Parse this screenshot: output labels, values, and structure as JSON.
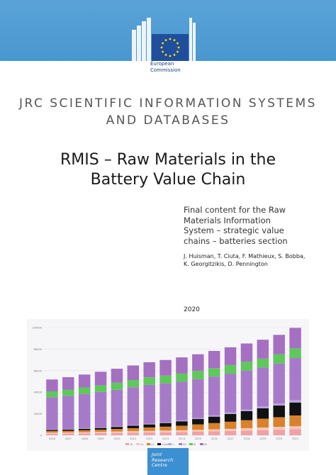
{
  "header": {
    "brand_lines": [
      "European",
      "Commission"
    ],
    "band_color": "#4a97cf",
    "flag_color": "#1f4f9c",
    "star_color": "#ffdd00"
  },
  "series_title_lines": [
    "JRC SCIENTIFIC INFORMATION SYSTEMS",
    "AND DATABASES"
  ],
  "title_lines": [
    "RMIS – Raw Materials in the",
    "Battery Value Chain"
  ],
  "subtitle_lines": [
    "Final content for the Raw",
    "Materials Information",
    "System – strategic value",
    "chains – batteries section"
  ],
  "authors_lines": [
    "J. Huisman, T. Ciuta, F. Mathieux, S. Bobba,",
    "K. Georgitzikis, D. Pennington"
  ],
  "year": "2020",
  "footer": {
    "jrc_lines": [
      "Joint",
      "Research",
      "Centre"
    ]
  },
  "chart_data": {
    "type": "bar",
    "stacked": true,
    "categories": [
      "2006",
      "2007",
      "2008",
      "2009",
      "2010",
      "2011",
      "2012",
      "2013",
      "2014",
      "2015",
      "2016",
      "2017",
      "2018",
      "2019",
      "2020",
      "2021"
    ],
    "ylim": [
      0,
      100000
    ],
    "y_ticks": [
      "0",
      "20000",
      "40000",
      "60000",
      "80000",
      "100000"
    ],
    "grid": true,
    "legend": "bottom",
    "series": [
      {
        "name": "Cd",
        "color": "#f0a0a8",
        "values": [
          1500,
          1600,
          1800,
          2000,
          2200,
          2400,
          2600,
          2800,
          3000,
          3300,
          3600,
          4000,
          4400,
          4800,
          5200,
          5600
        ]
      },
      {
        "name": "Co",
        "color": "#f6c8b8",
        "values": [
          1000,
          1000,
          1100,
          1200,
          1300,
          1400,
          1500,
          1600,
          1700,
          1800,
          1900,
          2000,
          2200,
          2400,
          2600,
          2800
        ]
      },
      {
        "name": "Cu",
        "color": "#d9822b",
        "values": [
          1500,
          1600,
          1800,
          2000,
          2400,
          2800,
          3200,
          3600,
          4200,
          5000,
          5800,
          6600,
          7400,
          8200,
          9000,
          10000
        ]
      },
      {
        "name": "Graphite",
        "color": "#111111",
        "values": [
          1000,
          1100,
          1300,
          1600,
          1900,
          2300,
          2800,
          3400,
          4100,
          5000,
          6000,
          7200,
          8400,
          9600,
          10800,
          12000
        ]
      },
      {
        "name": "Li",
        "color": "#b9a3e0",
        "values": [
          300,
          350,
          400,
          450,
          500,
          600,
          700,
          800,
          900,
          1000,
          1200,
          1400,
          1600,
          1800,
          2000,
          2300
        ]
      },
      {
        "name": "Mn",
        "color": "#a77ac9",
        "values": [
          30000,
          31000,
          32000,
          33000,
          34000,
          35000,
          36000,
          36000,
          36000,
          36000,
          36000,
          36000,
          36000,
          36000,
          37000,
          39000
        ]
      },
      {
        "name": "Ni",
        "color": "#5ec85a",
        "values": [
          5500,
          5800,
          6000,
          6200,
          6500,
          6800,
          7000,
          7200,
          7400,
          7600,
          7800,
          8000,
          8200,
          8400,
          8600,
          9000
        ]
      },
      {
        "name": "Sb",
        "color": "#a56fc2",
        "values": [
          11000,
          11500,
          12000,
          12500,
          13000,
          13500,
          14000,
          14500,
          15000,
          15500,
          16000,
          16500,
          17000,
          17500,
          18000,
          19000
        ]
      }
    ]
  }
}
